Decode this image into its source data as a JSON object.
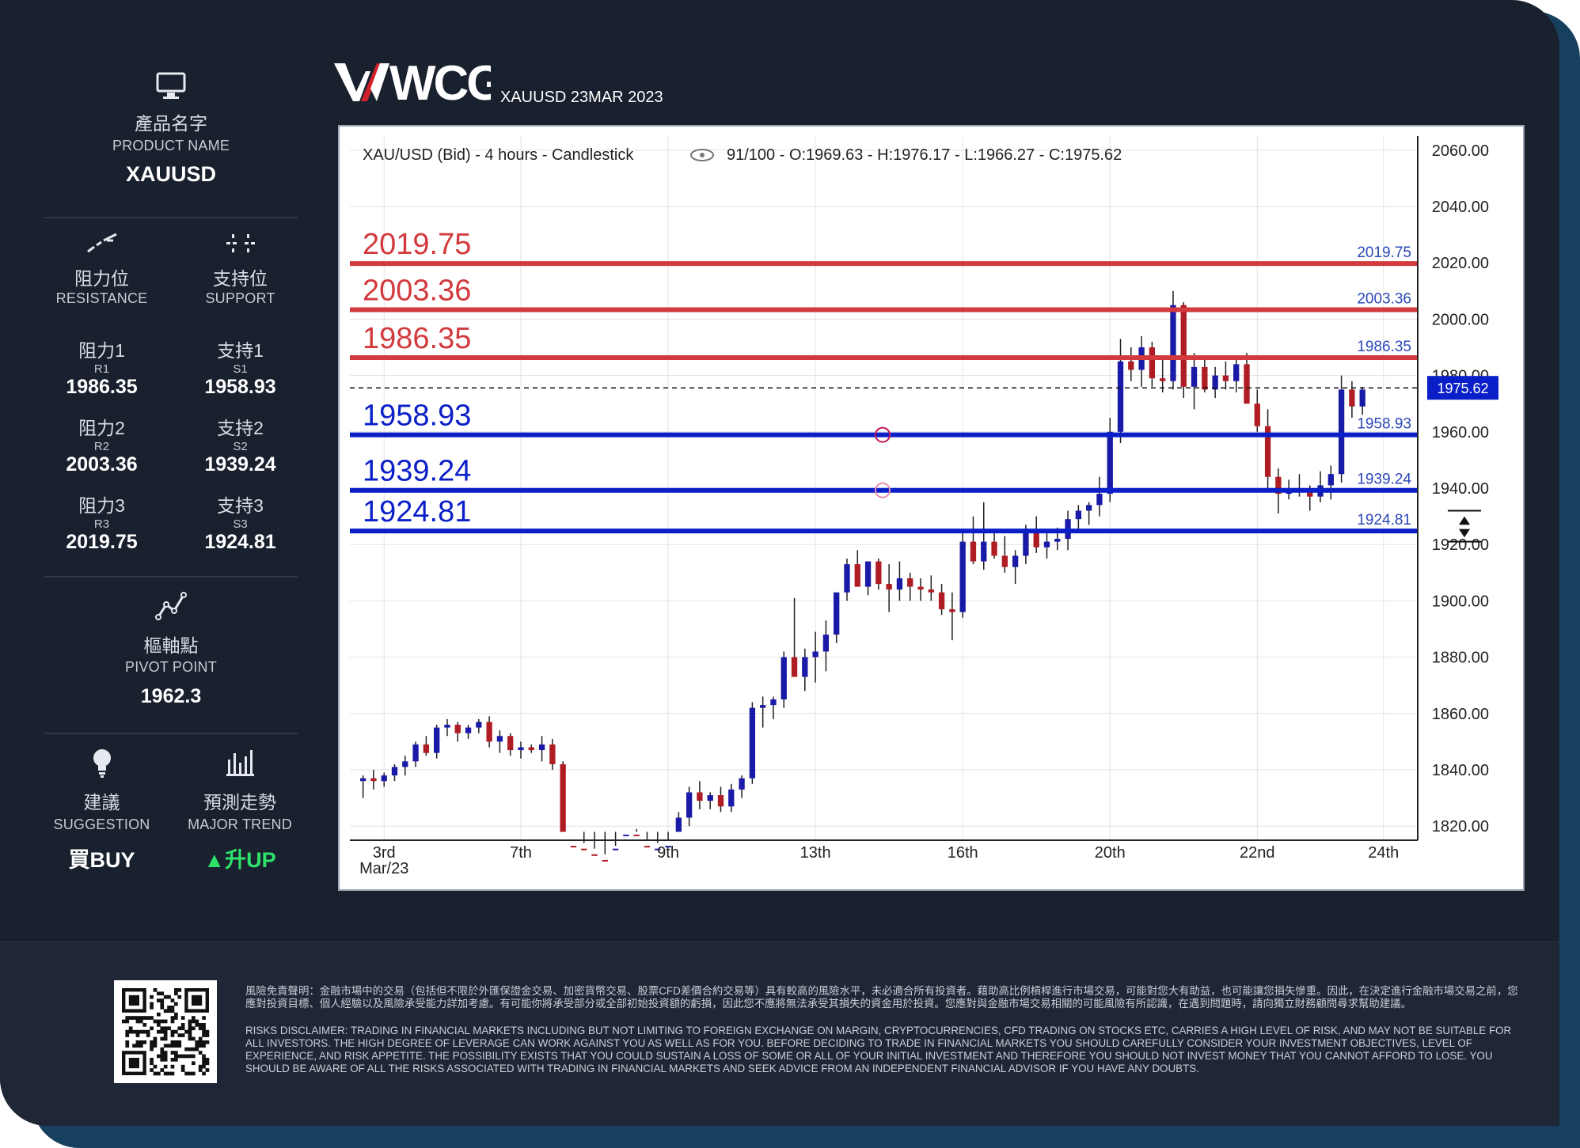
{
  "brand": {
    "logo_text": "WCG",
    "subtitle": "XAUUSD 23MAR 2023"
  },
  "sidebar": {
    "product": {
      "zh": "產品名字",
      "en": "PRODUCT NAME",
      "value": "XAUUSD"
    },
    "resistance": {
      "zh": "阻力位",
      "en": "RESISTANCE"
    },
    "support": {
      "zh": "支持位",
      "en": "SUPPORT"
    },
    "r1": {
      "zh": "阻力1",
      "code": "R1",
      "value": "1986.35"
    },
    "r2": {
      "zh": "阻力2",
      "code": "R2",
      "value": "2003.36"
    },
    "r3": {
      "zh": "阻力3",
      "code": "R3",
      "value": "2019.75"
    },
    "s1": {
      "zh": "支持1",
      "code": "S1",
      "value": "1958.93"
    },
    "s2": {
      "zh": "支持2",
      "code": "S2",
      "value": "1939.24"
    },
    "s3": {
      "zh": "支持3",
      "code": "S3",
      "value": "1924.81"
    },
    "pivot": {
      "zh": "樞軸點",
      "en": "PIVOT POINT",
      "value": "1962.3"
    },
    "suggestion": {
      "zh": "建議",
      "en": "SUGGESTION",
      "value": "買BUY"
    },
    "trend": {
      "zh": "預測走勢",
      "en": "MAJOR TREND",
      "value": "升UP"
    }
  },
  "colors": {
    "up": "#1a1aa8",
    "down": "#b01c24",
    "resistance": "#d23a3e",
    "support": "#0a1fc8",
    "trend_up": "#2fe36a"
  },
  "chart_data": {
    "type": "candlestick",
    "title": "XAU/USD (Bid) - 4 hours - Candlestick",
    "zoom": "91/100",
    "ohlc_text": {
      "o": "O:1969.63",
      "h": "H:1976.17",
      "l": "L:1966.27",
      "c": "C:1975.62"
    },
    "ylim": [
      1815,
      2065
    ],
    "y_ticks": [
      "2060.00",
      "2040.00",
      "2020.00",
      "2000.00",
      "1980.00",
      "1960.00",
      "1940.00",
      "1920.00",
      "1900.00",
      "1880.00",
      "1860.00",
      "1840.00",
      "1820.00"
    ],
    "x_ticks": [
      {
        "label": "3rd",
        "label2": "Mar/23",
        "i": 2
      },
      {
        "label": "7th",
        "i": 15
      },
      {
        "label": "9th",
        "i": 29
      },
      {
        "label": "13th",
        "i": 43
      },
      {
        "label": "16th",
        "i": 57
      },
      {
        "label": "20th",
        "i": 71
      },
      {
        "label": "22nd",
        "i": 85
      },
      {
        "label": "24th",
        "i": 97
      }
    ],
    "current_price": "1975.62",
    "levels": [
      {
        "value": 2019.75,
        "label": "2019.75",
        "kind": "resistance"
      },
      {
        "value": 2003.36,
        "label": "2003.36",
        "kind": "resistance"
      },
      {
        "value": 1986.35,
        "label": "1986.35",
        "kind": "resistance"
      },
      {
        "value": 1958.93,
        "label": "1958.93",
        "kind": "support"
      },
      {
        "value": 1939.24,
        "label": "1939.24",
        "kind": "support"
      },
      {
        "value": 1924.81,
        "label": "1924.81",
        "kind": "support"
      }
    ],
    "candles": [
      [
        1836,
        1838,
        1830,
        1837
      ],
      [
        1837,
        1840,
        1833,
        1836
      ],
      [
        1836,
        1839,
        1834,
        1838
      ],
      [
        1838,
        1842,
        1836,
        1841
      ],
      [
        1841,
        1845,
        1838,
        1843
      ],
      [
        1843,
        1850,
        1841,
        1849
      ],
      [
        1849,
        1852,
        1845,
        1846
      ],
      [
        1846,
        1856,
        1844,
        1855
      ],
      [
        1855,
        1858,
        1852,
        1856
      ],
      [
        1856,
        1857,
        1850,
        1853
      ],
      [
        1853,
        1856,
        1851,
        1855
      ],
      [
        1855,
        1858,
        1853,
        1857
      ],
      [
        1857,
        1859,
        1848,
        1850
      ],
      [
        1850,
        1854,
        1846,
        1852
      ],
      [
        1852,
        1853,
        1845,
        1847
      ],
      [
        1847,
        1850,
        1844,
        1848
      ],
      [
        1848,
        1849,
        1846,
        1847
      ],
      [
        1847,
        1852,
        1843,
        1849
      ],
      [
        1849,
        1851,
        1840,
        1842
      ],
      [
        1842,
        1843,
        1812,
        1813
      ],
      [
        1813,
        1818,
        1808,
        1812
      ],
      [
        1812,
        1814,
        1808,
        1810
      ],
      [
        1810,
        1812,
        1806,
        1808
      ],
      [
        1808,
        1810,
        1805,
        1807
      ],
      [
        1807,
        1813,
        1804,
        1812
      ],
      [
        1812,
        1818,
        1810,
        1817
      ],
      [
        1817,
        1819,
        1812,
        1813
      ],
      [
        1813,
        1815,
        1810,
        1811
      ],
      [
        1811,
        1814,
        1808,
        1812
      ],
      [
        1812,
        1815,
        1810,
        1813
      ],
      [
        1813,
        1825,
        1811,
        1823
      ],
      [
        1823,
        1834,
        1820,
        1832
      ],
      [
        1832,
        1836,
        1826,
        1829
      ],
      [
        1829,
        1832,
        1826,
        1831
      ],
      [
        1831,
        1834,
        1825,
        1827
      ],
      [
        1827,
        1835,
        1825,
        1833
      ],
      [
        1833,
        1838,
        1830,
        1837
      ],
      [
        1837,
        1864,
        1835,
        1862
      ],
      [
        1862,
        1866,
        1855,
        1863
      ],
      [
        1863,
        1866,
        1858,
        1865
      ],
      [
        1865,
        1882,
        1862,
        1880
      ],
      [
        1880,
        1901,
        1875,
        1873
      ],
      [
        1873,
        1883,
        1868,
        1880
      ],
      [
        1880,
        1889,
        1871,
        1882
      ],
      [
        1882,
        1893,
        1875,
        1888
      ],
      [
        1888,
        1901,
        1885,
        1903
      ],
      [
        1903,
        1915,
        1900,
        1913
      ],
      [
        1913,
        1918,
        1905,
        1905
      ],
      [
        1905,
        1914,
        1902,
        1914
      ],
      [
        1914,
        1915,
        1904,
        1906
      ],
      [
        1906,
        1913,
        1896,
        1904
      ],
      [
        1904,
        1914,
        1900,
        1908
      ],
      [
        1908,
        1910,
        1900,
        1905
      ],
      [
        1905,
        1908,
        1900,
        1904
      ],
      [
        1904,
        1909,
        1900,
        1903
      ],
      [
        1903,
        1906,
        1895,
        1897
      ],
      [
        1897,
        1903,
        1886,
        1896
      ],
      [
        1896,
        1924,
        1894,
        1921
      ],
      [
        1921,
        1930,
        1913,
        1914
      ],
      [
        1914,
        1935,
        1911,
        1921
      ],
      [
        1921,
        1924,
        1915,
        1916
      ],
      [
        1916,
        1923,
        1910,
        1912
      ],
      [
        1912,
        1918,
        1906,
        1916
      ],
      [
        1916,
        1927,
        1913,
        1925
      ],
      [
        1925,
        1930,
        1917,
        1919
      ],
      [
        1919,
        1924,
        1915,
        1921
      ],
      [
        1921,
        1926,
        1918,
        1922
      ],
      [
        1922,
        1932,
        1918,
        1929
      ],
      [
        1929,
        1934,
        1924,
        1932
      ],
      [
        1932,
        1935,
        1927,
        1934
      ],
      [
        1934,
        1944,
        1930,
        1938
      ],
      [
        1938,
        1965,
        1935,
        1960
      ],
      [
        1960,
        1993,
        1956,
        1985
      ],
      [
        1985,
        1990,
        1978,
        1982
      ],
      [
        1982,
        1994,
        1976,
        1990
      ],
      [
        1990,
        1992,
        1976,
        1979
      ],
      [
        1979,
        1986,
        1974,
        1978
      ],
      [
        1978,
        2010,
        1975,
        2005
      ],
      [
        2005,
        2006,
        1972,
        1976
      ],
      [
        1976,
        1988,
        1968,
        1983
      ],
      [
        1983,
        1986,
        1974,
        1975
      ],
      [
        1975,
        1983,
        1972,
        1980
      ],
      [
        1980,
        1985,
        1975,
        1978
      ],
      [
        1978,
        1986,
        1974,
        1984
      ],
      [
        1984,
        1988,
        1970,
        1970
      ],
      [
        1970,
        1975,
        1960,
        1962
      ],
      [
        1962,
        1968,
        1940,
        1944
      ],
      [
        1944,
        1947,
        1931,
        1938
      ],
      [
        1938,
        1943,
        1936,
        1940
      ],
      [
        1940,
        1945,
        1937,
        1939
      ],
      [
        1939,
        1941,
        1932,
        1937
      ],
      [
        1937,
        1946,
        1935,
        1941
      ],
      [
        1941,
        1948,
        1936,
        1945
      ],
      [
        1945,
        1980,
        1942,
        1975
      ],
      [
        1975,
        1978,
        1965,
        1969
      ],
      [
        1969,
        1976,
        1966,
        1975
      ]
    ]
  },
  "footer": {
    "disclaimer_zh": "風險免責聲明：金融市場中的交易（包括但不限於外匯保證金交易、加密貨幣交易、股票CFD差價合約交易等）具有較高的風險水平，未必適合所有投資者。藉助高比例槓桿進行市場交易，可能對您大有助益，也可能讓您損失慘重。因此，在決定進行金融市場交易之前，您應對投資目標、個人經驗以及風險承受能力詳加考慮。有可能你將承受部分或全部初始投資額的虧損，因此您不應將無法承受其損失的資金用於投資。您應對與金融市場交易相關的可能風險有所認識，在遇到問題時，請向獨立財務顧問尋求幫助建議。",
    "disclaimer_en": "RISKS DISCLAIMER: TRADING IN FINANCIAL MARKETS INCLUDING BUT NOT LIMITING TO FOREIGN EXCHANGE ON MARGIN, CRYPTOCURRENCIES, CFD TRADING ON STOCKS ETC, CARRIES A HIGH LEVEL OF RISK, AND MAY NOT BE SUITABLE FOR ALL INVESTORS. THE HIGH DEGREE OF LEVERAGE CAN WORK AGAINST YOU AS WELL AS FOR YOU. BEFORE DECIDING TO TRADE IN FINANCIAL MARKETS YOU SHOULD CAREFULLY CONSIDER YOUR INVESTMENT OBJECTIVES, LEVEL OF EXPERIENCE, AND RISK APPETITE. THE POSSIBILITY EXISTS THAT YOU COULD SUSTAIN A LOSS OF SOME OR ALL OF YOUR INITIAL INVESTMENT AND THEREFORE YOU SHOULD NOT INVEST MONEY THAT YOU CANNOT AFFORD TO LOSE. YOU SHOULD BE AWARE OF ALL THE RISKS ASSOCIATED WITH TRADING IN FINANCIAL MARKETS AND SEEK ADVICE FROM AN INDEPENDENT FINANCIAL ADVISOR IF YOU HAVE ANY DOUBTS."
  }
}
